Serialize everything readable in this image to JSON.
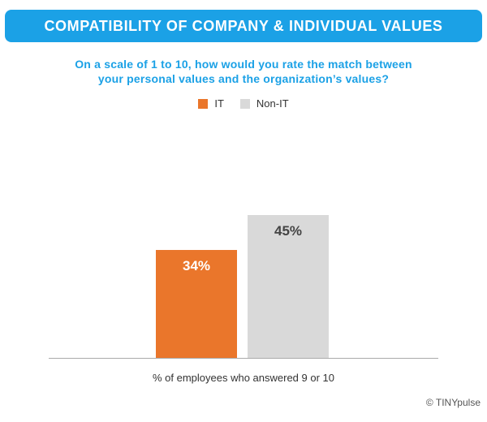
{
  "header": {
    "title": "COMPATIBILITY OF COMPANY & INDIVIDUAL VALUES",
    "subtitle_line1": "On a scale of 1 to 10, how would you rate the match between",
    "subtitle_line2": "your personal values and the organization’s values?"
  },
  "legend": [
    {
      "label": "IT",
      "color": "#ea762b"
    },
    {
      "label": "Non-IT",
      "color": "#d9d9d9"
    }
  ],
  "chart_data": {
    "type": "bar",
    "categories": [
      "IT",
      "Non-IT"
    ],
    "values": [
      34,
      45
    ],
    "data_labels": [
      "34%",
      "45%"
    ],
    "colors": [
      "#ea762b",
      "#d9d9d9"
    ],
    "label_colors": [
      "#ffffff",
      "#444444"
    ],
    "xlabel": "% of employees who answered 9 or 10",
    "ylim": [
      0,
      100
    ],
    "grid": false,
    "legend_position": "top-center"
  },
  "footer": {
    "credit": "© TINYpulse"
  }
}
